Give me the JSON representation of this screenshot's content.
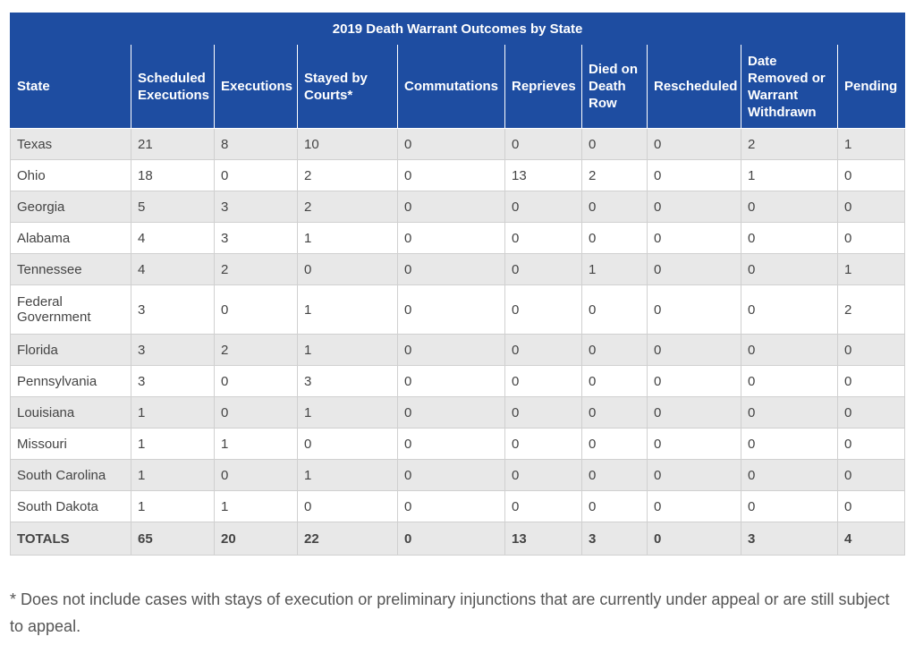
{
  "table": {
    "title": "2019 Death Warrant Outcomes by State",
    "columns": [
      "State",
      "Scheduled Executions",
      "Executions",
      "Stayed by Courts*",
      "Commutations",
      "Reprieves",
      "Died on Death Row",
      "Rescheduled",
      "Date Removed or Warrant Withdrawn",
      "Pending"
    ],
    "rows": [
      [
        "Texas",
        "21",
        "8",
        "10",
        "0",
        "0",
        "0",
        "0",
        "2",
        "1"
      ],
      [
        "Ohio",
        "18",
        "0",
        "2",
        "0",
        "13",
        "2",
        "0",
        "1",
        "0"
      ],
      [
        "Georgia",
        "5",
        "3",
        "2",
        "0",
        "0",
        "0",
        "0",
        "0",
        "0"
      ],
      [
        "Alabama",
        "4",
        "3",
        "1",
        "0",
        "0",
        "0",
        "0",
        "0",
        "0"
      ],
      [
        "Tennessee",
        "4",
        "2",
        "0",
        "0",
        "0",
        "1",
        "0",
        "0",
        "1"
      ],
      [
        "Federal Government",
        "3",
        "0",
        "1",
        "0",
        "0",
        "0",
        "0",
        "0",
        "2"
      ],
      [
        "Florida",
        "3",
        "2",
        "1",
        "0",
        "0",
        "0",
        "0",
        "0",
        "0"
      ],
      [
        "Pennsylvania",
        "3",
        "0",
        "3",
        "0",
        "0",
        "0",
        "0",
        "0",
        "0"
      ],
      [
        "Louisiana",
        "1",
        "0",
        "1",
        "0",
        "0",
        "0",
        "0",
        "0",
        "0"
      ],
      [
        "Missouri",
        "1",
        "1",
        "0",
        "0",
        "0",
        "0",
        "0",
        "0",
        "0"
      ],
      [
        "South Carolina",
        "1",
        "0",
        "1",
        "0",
        "0",
        "0",
        "0",
        "0",
        "0"
      ],
      [
        "South Dakota",
        "1",
        "1",
        "0",
        "0",
        "0",
        "0",
        "0",
        "0",
        "0"
      ]
    ],
    "totals": [
      "TOTALS",
      "65",
      "20",
      "22",
      "0",
      "13",
      "3",
      "0",
      "3",
      "4"
    ]
  },
  "footnote": "* Does not include cases with stays of execution or preliminary injunctions that are currently under appeal or are still subject to appeal.",
  "colors": {
    "header_bg": "#1e4da1",
    "header_text": "#ffffff",
    "row_alt_bg": "#e8e8e8",
    "border": "#d0d0d0"
  },
  "chart_data": {
    "type": "table",
    "title": "2019 Death Warrant Outcomes by State",
    "categories": [
      "Texas",
      "Ohio",
      "Georgia",
      "Alabama",
      "Tennessee",
      "Federal Government",
      "Florida",
      "Pennsylvania",
      "Louisiana",
      "Missouri",
      "South Carolina",
      "South Dakota"
    ],
    "series": [
      {
        "name": "Scheduled Executions",
        "values": [
          21,
          18,
          5,
          4,
          4,
          3,
          3,
          3,
          1,
          1,
          1,
          1
        ],
        "total": 65
      },
      {
        "name": "Executions",
        "values": [
          8,
          0,
          3,
          3,
          2,
          0,
          2,
          0,
          0,
          1,
          0,
          1
        ],
        "total": 20
      },
      {
        "name": "Stayed by Courts*",
        "values": [
          10,
          2,
          2,
          1,
          0,
          1,
          1,
          3,
          1,
          0,
          1,
          0
        ],
        "total": 22
      },
      {
        "name": "Commutations",
        "values": [
          0,
          0,
          0,
          0,
          0,
          0,
          0,
          0,
          0,
          0,
          0,
          0
        ],
        "total": 0
      },
      {
        "name": "Reprieves",
        "values": [
          0,
          13,
          0,
          0,
          0,
          0,
          0,
          0,
          0,
          0,
          0,
          0
        ],
        "total": 13
      },
      {
        "name": "Died on Death Row",
        "values": [
          0,
          2,
          0,
          0,
          1,
          0,
          0,
          0,
          0,
          0,
          0,
          0
        ],
        "total": 3
      },
      {
        "name": "Rescheduled",
        "values": [
          0,
          0,
          0,
          0,
          0,
          0,
          0,
          0,
          0,
          0,
          0,
          0
        ],
        "total": 0
      },
      {
        "name": "Date Removed or Warrant Withdrawn",
        "values": [
          2,
          1,
          0,
          0,
          0,
          0,
          0,
          0,
          0,
          0,
          0,
          0
        ],
        "total": 3
      },
      {
        "name": "Pending",
        "values": [
          1,
          0,
          0,
          0,
          1,
          2,
          0,
          0,
          0,
          0,
          0,
          0
        ],
        "total": 4
      }
    ]
  }
}
